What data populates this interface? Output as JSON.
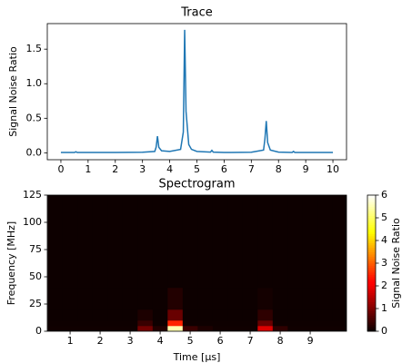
{
  "chart_data": [
    {
      "type": "line",
      "title": "Trace",
      "ylabel": "Signal Noise Ratio",
      "color": "#1f77b4",
      "x": [
        0,
        0.5,
        0.55,
        0.6,
        1,
        2,
        3,
        3.45,
        3.5,
        3.55,
        3.6,
        3.7,
        4,
        4.4,
        4.5,
        4.55,
        4.6,
        4.7,
        4.8,
        5,
        5.5,
        5.55,
        5.6,
        6,
        7,
        7.45,
        7.5,
        7.55,
        7.6,
        7.7,
        8,
        8.5,
        8.55,
        8.6,
        9,
        10
      ],
      "values": [
        0.005,
        0.005,
        0.015,
        0.005,
        0.005,
        0.005,
        0.008,
        0.02,
        0.08,
        0.24,
        0.08,
        0.03,
        0.02,
        0.05,
        0.3,
        1.78,
        0.6,
        0.12,
        0.05,
        0.02,
        0.01,
        0.035,
        0.01,
        0.005,
        0.008,
        0.04,
        0.2,
        0.46,
        0.15,
        0.04,
        0.01,
        0.005,
        0.02,
        0.005,
        0.005,
        0.005
      ],
      "xlim": [
        -0.5,
        10.5
      ],
      "xticks": [
        0,
        1,
        2,
        3,
        4,
        5,
        6,
        7,
        8,
        9,
        10
      ],
      "ylim": [
        -0.1,
        1.87
      ],
      "yticks": [
        0.0,
        0.5,
        1.0,
        1.5
      ]
    },
    {
      "type": "heatmap",
      "title": "Spectrogram",
      "xlabel": "Time [µs]",
      "ylabel": "Frequency [MHz]",
      "colorbar_label": "Signal Noise Ratio",
      "colormap": "hot",
      "x_edges": [
        0.25,
        0.75,
        1.25,
        1.75,
        2.25,
        2.75,
        3.25,
        3.75,
        4.25,
        4.75,
        5.25,
        5.75,
        6.25,
        6.75,
        7.25,
        7.75,
        8.25,
        8.75,
        9.25,
        9.75,
        10.25
      ],
      "y_edges": [
        0,
        5,
        10,
        20,
        40,
        125
      ],
      "z": [
        [
          0.05,
          0.05,
          0.05,
          0.05,
          0.05,
          0.05,
          0.9,
          0.2,
          5.5,
          0.4,
          0.15,
          0.05,
          0.05,
          0.05,
          1.8,
          0.3,
          0.05,
          0.05,
          0.05,
          0.05
        ],
        [
          0.03,
          0.03,
          0.03,
          0.03,
          0.03,
          0.03,
          0.4,
          0.03,
          2.5,
          0.03,
          0.03,
          0.03,
          0.03,
          0.03,
          0.8,
          0.03,
          0.03,
          0.03,
          0.03,
          0.03
        ],
        [
          0.02,
          0.02,
          0.02,
          0.02,
          0.02,
          0.02,
          0.15,
          0.02,
          0.8,
          0.02,
          0.02,
          0.02,
          0.02,
          0.02,
          0.3,
          0.02,
          0.02,
          0.02,
          0.02,
          0.02
        ],
        [
          0.02,
          0.02,
          0.02,
          0.02,
          0.02,
          0.02,
          0.02,
          0.02,
          0.2,
          0.02,
          0.02,
          0.02,
          0.02,
          0.02,
          0.08,
          0.02,
          0.02,
          0.02,
          0.02,
          0.02
        ],
        [
          0.02,
          0.02,
          0.02,
          0.02,
          0.02,
          0.02,
          0.02,
          0.02,
          0.02,
          0.02,
          0.02,
          0.02,
          0.02,
          0.02,
          0.02,
          0.02,
          0.02,
          0.02,
          0.02,
          0.02
        ]
      ],
      "xlim": [
        0.24,
        10.21
      ],
      "xticks": [
        1,
        2,
        3,
        4,
        5,
        6,
        7,
        8,
        9
      ],
      "ylim": [
        0,
        125
      ],
      "yticks": [
        0,
        25,
        50,
        75,
        100,
        125
      ],
      "clim": [
        0,
        6
      ],
      "cticks": [
        0,
        1,
        2,
        3,
        4,
        5,
        6
      ]
    }
  ]
}
